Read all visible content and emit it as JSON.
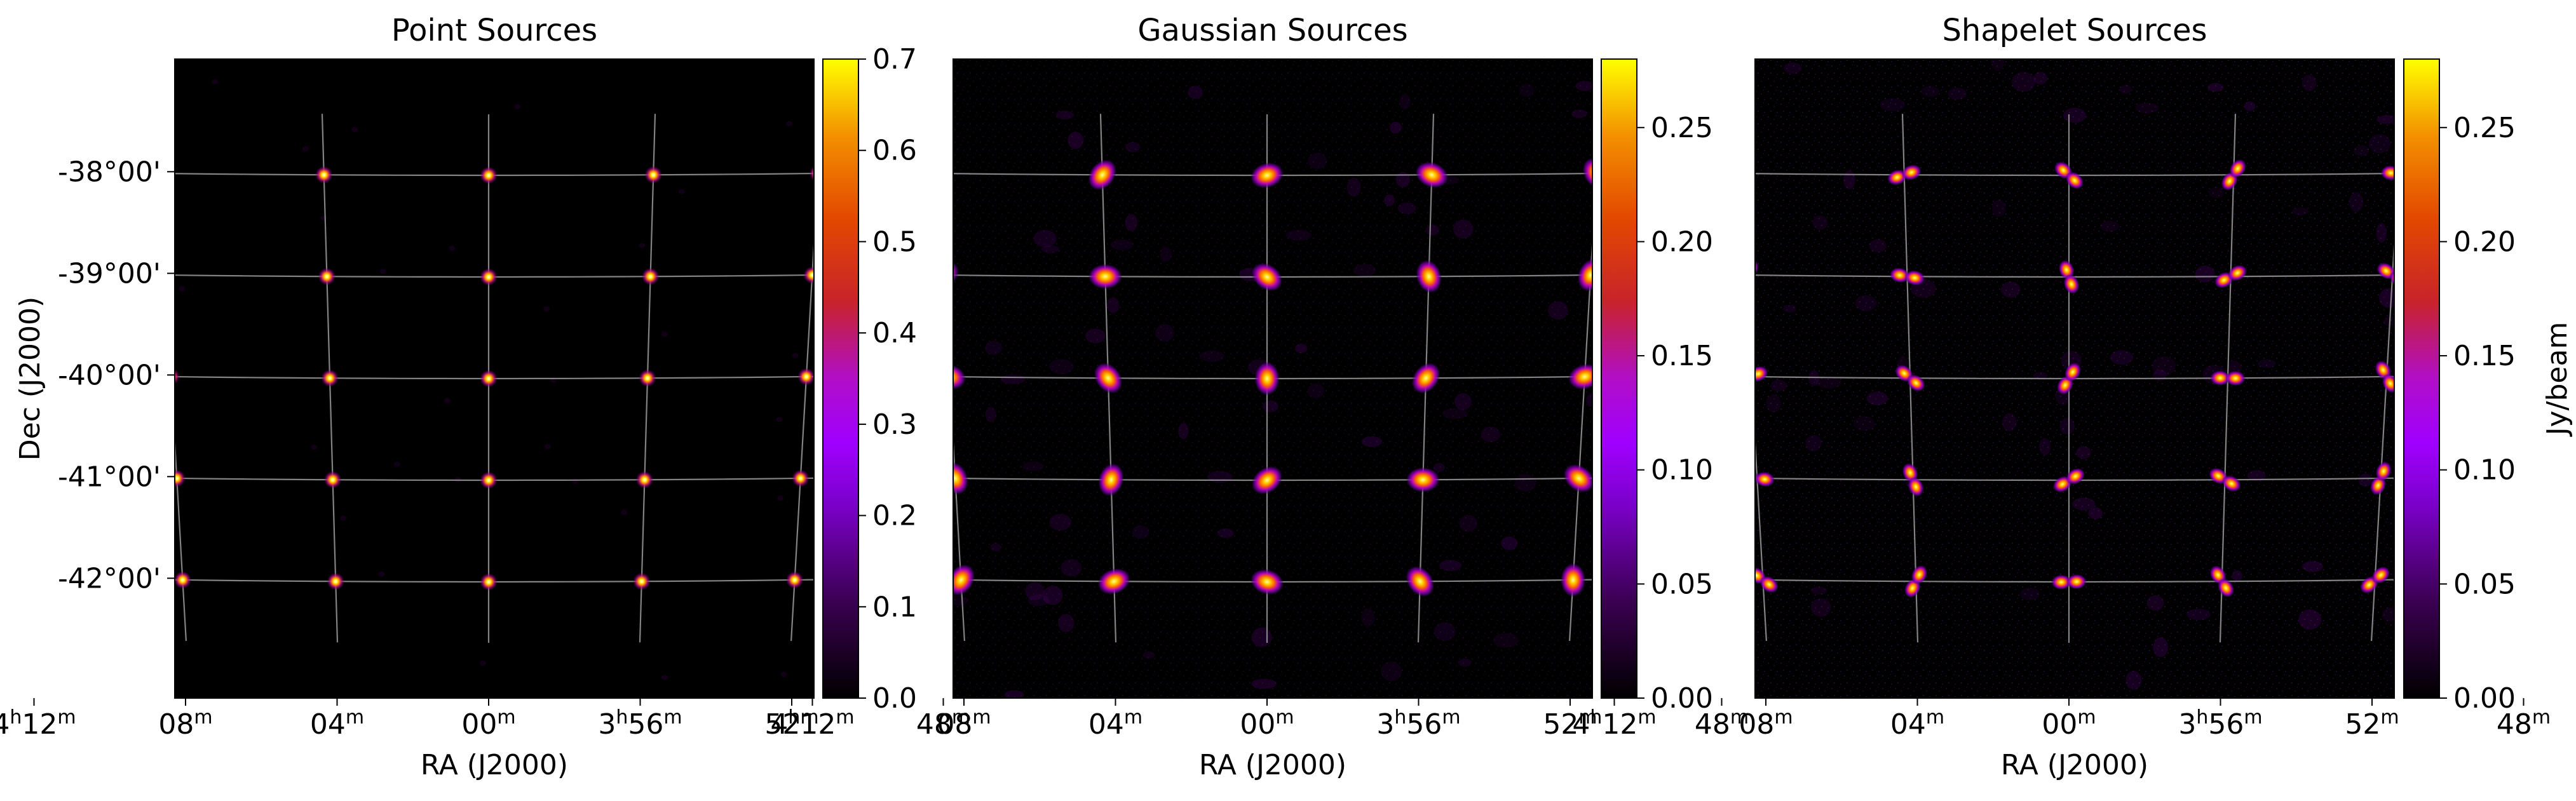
{
  "colors": {
    "background": "#ffffff",
    "plot_bg": "#000000",
    "grid": "#9a9a9a",
    "frame": "#000000",
    "colormap": "gnuplot"
  },
  "chart_data": [
    {
      "type": "heatmap",
      "title": "Point Sources",
      "xlabel": "RA (J2000)",
      "ylabel": "Dec (J2000)",
      "x_ticks": [
        [
          "4",
          "h",
          "12",
          "m"
        ],
        [
          "",
          "",
          "08",
          "m"
        ],
        [
          "",
          "",
          "04",
          "m"
        ],
        [
          "",
          "",
          "00",
          "m"
        ],
        [
          "3",
          "h",
          "56",
          "m"
        ],
        [
          "",
          "",
          "52",
          "m"
        ],
        [
          "",
          "",
          "48",
          "m"
        ]
      ],
      "y_ticks": [
        "-38°00'",
        "-39°00'",
        "-40°00'",
        "-41°00'",
        "-42°00'"
      ],
      "grid": true,
      "source_shape": "point",
      "source_grid": {
        "ra_min": [
          8,
          4,
          0,
          -4,
          -8
        ],
        "dec_deg": [
          -38,
          -39,
          -40,
          -41,
          -42
        ]
      },
      "colorbar": {
        "min": 0.0,
        "max": 0.7,
        "ticks": [
          "0.0",
          "0.1",
          "0.2",
          "0.3",
          "0.4",
          "0.5",
          "0.6",
          "0.7"
        ],
        "label": ""
      }
    },
    {
      "type": "heatmap",
      "title": "Gaussian Sources",
      "xlabel": "RA (J2000)",
      "ylabel": "",
      "x_ticks": [
        [
          "4",
          "h",
          "12",
          "m"
        ],
        [
          "",
          "",
          "08",
          "m"
        ],
        [
          "",
          "",
          "04",
          "m"
        ],
        [
          "",
          "",
          "00",
          "m"
        ],
        [
          "3",
          "h",
          "56",
          "m"
        ],
        [
          "",
          "",
          "52",
          "m"
        ],
        [
          "",
          "",
          "48",
          "m"
        ]
      ],
      "y_ticks": [],
      "grid": true,
      "source_shape": "gaussian",
      "source_grid": {
        "ra_min": [
          8,
          4,
          0,
          -4,
          -8
        ],
        "dec_deg": [
          -38,
          -39,
          -40,
          -41,
          -42
        ]
      },
      "colorbar": {
        "min": 0.0,
        "max": 0.28,
        "ticks": [
          "0.00",
          "0.05",
          "0.10",
          "0.15",
          "0.20",
          "0.25"
        ],
        "label": ""
      }
    },
    {
      "type": "heatmap",
      "title": "Shapelet Sources",
      "xlabel": "RA (J2000)",
      "ylabel": "",
      "x_ticks": [
        [
          "4",
          "h",
          "12",
          "m"
        ],
        [
          "",
          "",
          "08",
          "m"
        ],
        [
          "",
          "",
          "04",
          "m"
        ],
        [
          "",
          "",
          "00",
          "m"
        ],
        [
          "3",
          "h",
          "56",
          "m"
        ],
        [
          "",
          "",
          "52",
          "m"
        ],
        [
          "",
          "",
          "48",
          "m"
        ]
      ],
      "y_ticks": [],
      "grid": true,
      "source_shape": "shapelet",
      "source_grid": {
        "ra_min": [
          8,
          4,
          0,
          -4,
          -8
        ],
        "dec_deg": [
          -38,
          -39,
          -40,
          -41,
          -42
        ]
      },
      "colorbar": {
        "min": 0.0,
        "max": 0.28,
        "ticks": [
          "0.00",
          "0.05",
          "0.10",
          "0.15",
          "0.20",
          "0.25"
        ],
        "label": "Jy/beam"
      }
    }
  ]
}
